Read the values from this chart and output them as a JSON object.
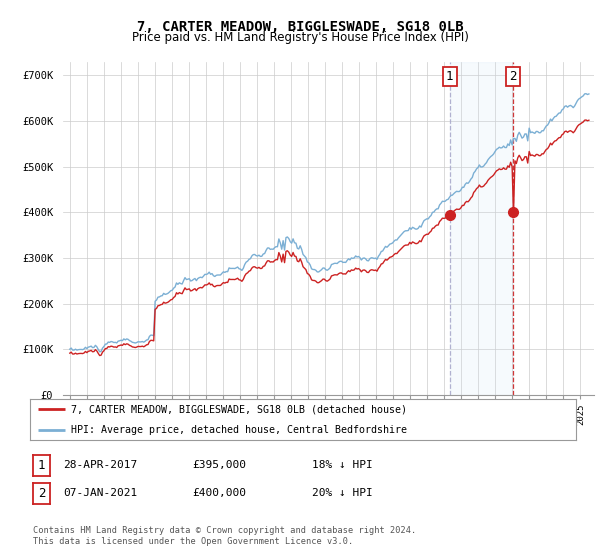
{
  "title": "7, CARTER MEADOW, BIGGLESWADE, SG18 0LB",
  "subtitle": "Price paid vs. HM Land Registry's House Price Index (HPI)",
  "ylim": [
    0,
    730000
  ],
  "yticks": [
    0,
    100000,
    200000,
    300000,
    400000,
    500000,
    600000,
    700000
  ],
  "ytick_labels": [
    "£0",
    "£100K",
    "£200K",
    "£300K",
    "£400K",
    "£500K",
    "£600K",
    "£700K"
  ],
  "hpi_color": "#7bafd4",
  "price_color": "#cc2222",
  "vline1_color": "#aaaacc",
  "vline2_color": "#cc2222",
  "shade_color": "#d0e4f5",
  "t1_year": 2017.32,
  "t1_price": 395000,
  "t2_year": 2021.05,
  "t2_price": 400000,
  "legend_line1": "7, CARTER MEADOW, BIGGLESWADE, SG18 0LB (detached house)",
  "legend_line2": "HPI: Average price, detached house, Central Bedfordshire",
  "table_row1": [
    "1",
    "28-APR-2017",
    "£395,000",
    "18% ↓ HPI"
  ],
  "table_row2": [
    "2",
    "07-JAN-2021",
    "£400,000",
    "20% ↓ HPI"
  ],
  "footer": "Contains HM Land Registry data © Crown copyright and database right 2024.\nThis data is licensed under the Open Government Licence v3.0.",
  "background_color": "#ffffff",
  "grid_color": "#cccccc"
}
